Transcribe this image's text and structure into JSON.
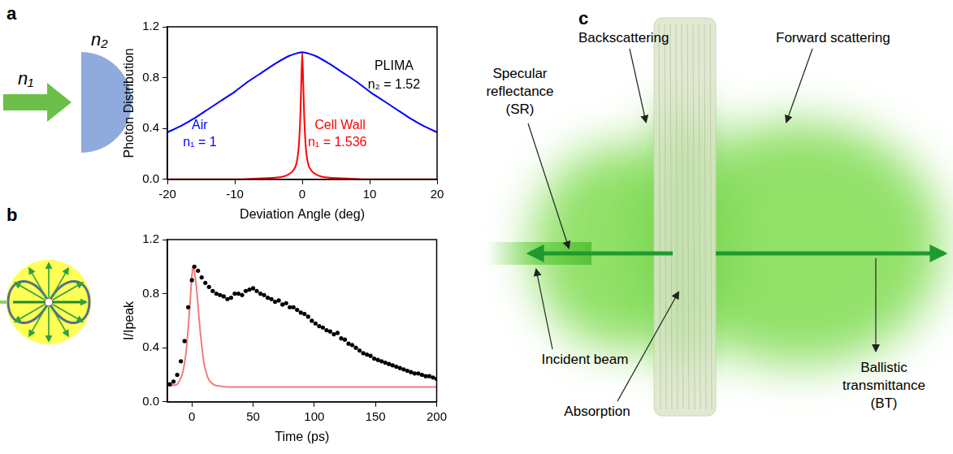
{
  "panel_labels": [
    "a",
    "b",
    "c"
  ],
  "schematic_a": {
    "n1": "n₁",
    "n2": "n₂"
  },
  "chart_data": [
    {
      "type": "line",
      "panel": "a",
      "x_label": "Deviation Angle (deg)",
      "y_label": "Photon Distribution",
      "xlim": [
        -20,
        20
      ],
      "xticks": [
        -20,
        -10,
        0,
        10,
        20
      ],
      "ylim": [
        0,
        1.2
      ],
      "yticks": [
        {
          "value": 0,
          "label": "0.0"
        },
        0.4,
        0.8,
        1.2
      ],
      "grid": false,
      "series": [
        {
          "color": "#0000ff",
          "x": [
            -20,
            -18,
            -16,
            -14,
            -12,
            -10,
            -8,
            -6,
            -4,
            -2,
            0,
            2,
            4,
            6,
            8,
            10,
            12,
            14,
            16,
            18,
            20
          ],
          "values": [
            0.37,
            0.42,
            0.48,
            0.55,
            0.62,
            0.69,
            0.77,
            0.84,
            0.91,
            0.97,
            1.0,
            0.97,
            0.91,
            0.84,
            0.77,
            0.69,
            0.62,
            0.55,
            0.48,
            0.42,
            0.37
          ]
        },
        {
          "color": "#ff0000",
          "x": [
            -20,
            -10,
            -5,
            -3,
            -2,
            -1.5,
            -1,
            -0.7,
            -0.5,
            -0.3,
            -0.15,
            0,
            0.15,
            0.3,
            0.5,
            0.7,
            1,
            1.5,
            2,
            3,
            5,
            10,
            20
          ],
          "values": [
            0,
            0,
            0.01,
            0.02,
            0.04,
            0.06,
            0.1,
            0.17,
            0.27,
            0.48,
            0.75,
            1.0,
            0.75,
            0.48,
            0.27,
            0.17,
            0.1,
            0.06,
            0.04,
            0.02,
            0.01,
            0,
            0
          ]
        }
      ],
      "annotations": [
        {
          "text": "PLIMA",
          "color": "#000000"
        },
        {
          "text": "n₂ = 1.52",
          "color": "#000000"
        },
        {
          "text": "Air",
          "color": "#0000ff"
        },
        {
          "text": "n₁ = 1",
          "color": "#0000ff"
        },
        {
          "text": "Cell Wall",
          "color": "#ff0000"
        },
        {
          "text": "n₁ = 1.536",
          "color": "#ff0000"
        }
      ]
    },
    {
      "type": "line",
      "panel": "b",
      "x_label": "Time (ps)",
      "y_label": "I/Ipeak",
      "xlim": [
        -20,
        200
      ],
      "xticks": [
        0,
        50,
        100,
        150,
        200
      ],
      "ylim": [
        0,
        1.2
      ],
      "yticks": [
        {
          "value": 0,
          "label": "0.0"
        },
        0.4,
        0.8,
        1.2
      ],
      "grid": false,
      "series": [
        {
          "type": "scatter",
          "marker": "circle",
          "color": "#000000",
          "x": [
            -18,
            -15,
            -12,
            -9,
            -6,
            -3,
            0,
            2,
            5,
            8,
            11,
            14,
            17,
            20,
            23,
            26,
            29,
            32,
            35,
            38,
            41,
            44,
            47,
            50,
            53,
            56,
            59,
            62,
            65,
            68,
            71,
            74,
            77,
            80,
            83,
            86,
            89,
            92,
            95,
            98,
            101,
            104,
            107,
            110,
            113,
            116,
            119,
            122,
            125,
            128,
            131,
            134,
            137,
            140,
            143,
            146,
            149,
            152,
            155,
            158,
            161,
            164,
            167,
            170,
            173,
            176,
            179,
            182,
            185,
            188,
            191,
            194,
            197,
            200
          ],
          "values": [
            0.13,
            0.15,
            0.2,
            0.3,
            0.45,
            0.7,
            0.9,
            1.0,
            0.97,
            0.92,
            0.88,
            0.85,
            0.82,
            0.8,
            0.79,
            0.78,
            0.76,
            0.77,
            0.8,
            0.8,
            0.79,
            0.82,
            0.83,
            0.84,
            0.82,
            0.8,
            0.79,
            0.77,
            0.76,
            0.74,
            0.75,
            0.72,
            0.73,
            0.7,
            0.7,
            0.68,
            0.66,
            0.65,
            0.63,
            0.6,
            0.58,
            0.56,
            0.55,
            0.53,
            0.52,
            0.5,
            0.51,
            0.47,
            0.46,
            0.43,
            0.42,
            0.4,
            0.38,
            0.36,
            0.35,
            0.34,
            0.32,
            0.31,
            0.3,
            0.29,
            0.28,
            0.27,
            0.26,
            0.25,
            0.24,
            0.23,
            0.22,
            0.21,
            0.21,
            0.2,
            0.19,
            0.19,
            0.18,
            0.17
          ]
        },
        {
          "type": "line",
          "color": "#f47c7c",
          "x": [
            -18,
            -12,
            -8,
            -5,
            -3,
            -1,
            0,
            1,
            2,
            4,
            6,
            8,
            10,
            13,
            16,
            20,
            30,
            50,
            100,
            150,
            200
          ],
          "values": [
            0.12,
            0.13,
            0.2,
            0.35,
            0.55,
            0.8,
            0.93,
            1.0,
            0.97,
            0.82,
            0.6,
            0.42,
            0.28,
            0.18,
            0.14,
            0.12,
            0.11,
            0.11,
            0.11,
            0.11,
            0.11
          ]
        }
      ]
    }
  ],
  "diagram_c": {
    "backscattering": "Backscattering",
    "forward_scattering": "Forward scattering",
    "specular_reflectance": [
      "Specular",
      "reflectance",
      "(SR)"
    ],
    "incident_beam": "Incident beam",
    "absorption": "Absorption",
    "ballistic_transmittance": [
      "Ballistic",
      "transmittance",
      "(BT)"
    ]
  }
}
